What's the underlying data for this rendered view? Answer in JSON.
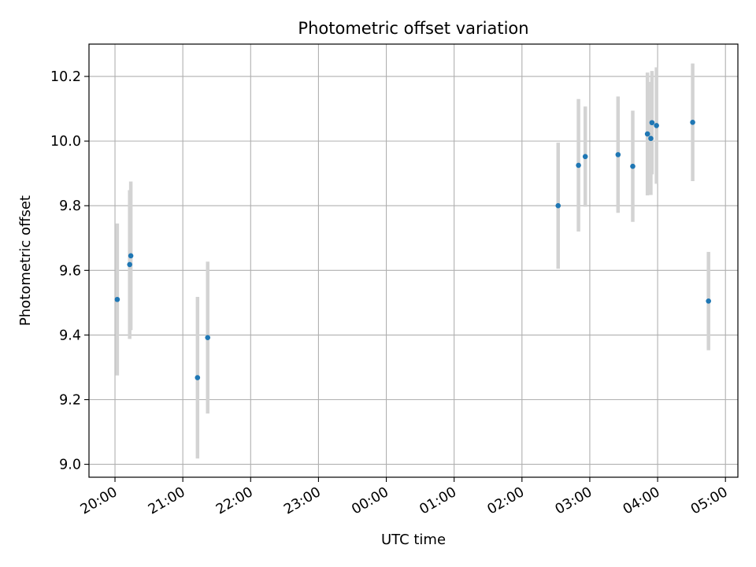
{
  "chart_data": {
    "type": "scatter",
    "title": "Photometric offset variation",
    "xlabel": "UTC time",
    "ylabel": "Photometric offset",
    "x_ticks": [
      "20:00",
      "21:00",
      "22:00",
      "23:00",
      "00:00",
      "01:00",
      "02:00",
      "03:00",
      "04:00",
      "05:00"
    ],
    "y_ticks": [
      "9.0",
      "9.2",
      "9.4",
      "9.6",
      "9.8",
      "10.0",
      "10.2"
    ],
    "xlim": [
      "19:37",
      "05:11"
    ],
    "ylim": [
      8.96,
      10.3
    ],
    "grid": true,
    "colors": {
      "point": "#1f77b4",
      "errorbar": "#d3d3d3",
      "grid": "#b0b0b0"
    },
    "points": [
      {
        "x": "20:02",
        "y": 9.51,
        "err": 0.235
      },
      {
        "x": "20:13",
        "y": 9.618,
        "err": 0.23
      },
      {
        "x": "20:14",
        "y": 9.645,
        "err": 0.23
      },
      {
        "x": "21:13",
        "y": 9.268,
        "err": 0.25
      },
      {
        "x": "21:22",
        "y": 9.392,
        "err": 0.235
      },
      {
        "x": "02:32",
        "y": 9.8,
        "err": 0.195
      },
      {
        "x": "02:50",
        "y": 9.925,
        "err": 0.205
      },
      {
        "x": "02:56",
        "y": 9.952,
        "err": 0.155
      },
      {
        "x": "03:25",
        "y": 9.958,
        "err": 0.18
      },
      {
        "x": "03:38",
        "y": 9.922,
        "err": 0.172
      },
      {
        "x": "03:51",
        "y": 10.022,
        "err": 0.19
      },
      {
        "x": "03:54",
        "y": 10.008,
        "err": 0.175
      },
      {
        "x": "03:55",
        "y": 10.057,
        "err": 0.16
      },
      {
        "x": "03:59",
        "y": 10.048,
        "err": 0.18
      },
      {
        "x": "04:31",
        "y": 10.058,
        "err": 0.182
      },
      {
        "x": "04:45",
        "y": 9.505,
        "err": 0.152
      }
    ]
  }
}
